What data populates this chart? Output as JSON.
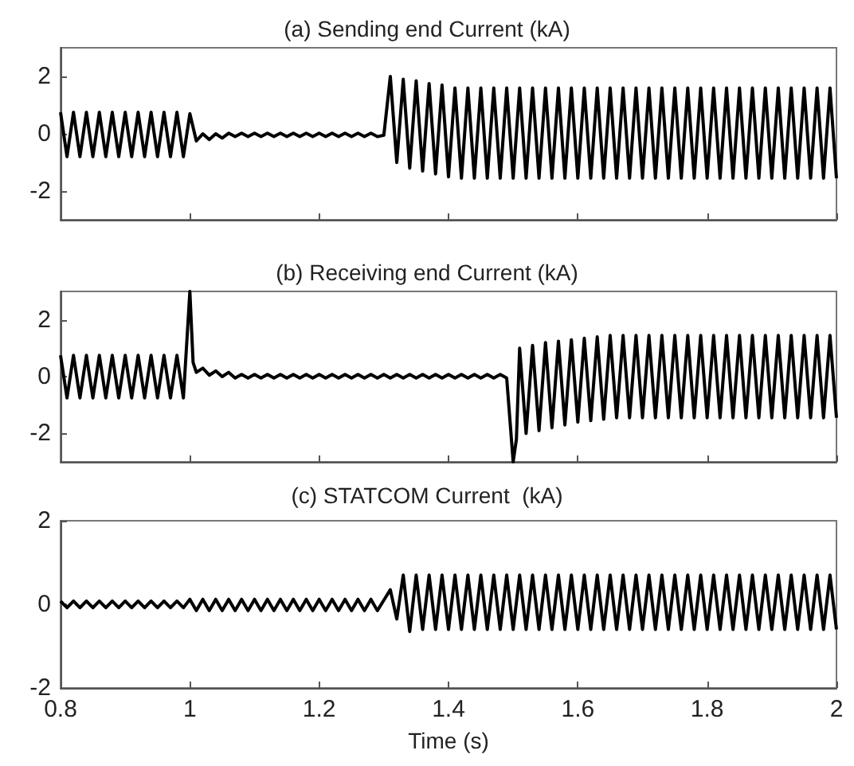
{
  "chart_data": [
    {
      "type": "line",
      "title": "(a) Sending end Current (kA)",
      "color": "#000000",
      "xlim": [
        0.8,
        2
      ],
      "ylim": [
        -3,
        3
      ],
      "xticks": [
        0.8,
        1,
        1.2,
        1.4,
        1.6,
        1.8,
        2
      ],
      "yticks": [
        -2,
        0,
        2
      ],
      "tick_labels": "y",
      "x": [
        0.8,
        0.81,
        0.82,
        0.83,
        0.84,
        0.85,
        0.86,
        0.87,
        0.88,
        0.89,
        0.9,
        0.91,
        0.92,
        0.93,
        0.94,
        0.95,
        0.96,
        0.97,
        0.98,
        0.99,
        1,
        1.01,
        1.02,
        1.03,
        1.04,
        1.05,
        1.06,
        1.07,
        1.08,
        1.09,
        1.1,
        1.11,
        1.12,
        1.13,
        1.14,
        1.15,
        1.16,
        1.17,
        1.18,
        1.19,
        1.2,
        1.21,
        1.22,
        1.23,
        1.24,
        1.25,
        1.26,
        1.27,
        1.28,
        1.29,
        1.3,
        1.31,
        1.32,
        1.33,
        1.34,
        1.35,
        1.36,
        1.37,
        1.38,
        1.39,
        1.4,
        1.41,
        1.42,
        1.43,
        1.44,
        1.45,
        1.46,
        1.47,
        1.48,
        1.49,
        1.5,
        1.51,
        1.52,
        1.53,
        1.54,
        1.55,
        1.56,
        1.57,
        1.58,
        1.59,
        1.6,
        1.61,
        1.62,
        1.63,
        1.64,
        1.65,
        1.66,
        1.67,
        1.68,
        1.69,
        1.7,
        1.71,
        1.72,
        1.73,
        1.74,
        1.75,
        1.76,
        1.77,
        1.78,
        1.79,
        1.8,
        1.81,
        1.82,
        1.83,
        1.84,
        1.85,
        1.86,
        1.87,
        1.88,
        1.89,
        1.9,
        1.91,
        1.92,
        1.93,
        1.94,
        1.95,
        1.96,
        1.97,
        1.98,
        1.99,
        2
      ],
      "values": [
        0.75,
        -0.8,
        0.75,
        -0.8,
        0.75,
        -0.8,
        0.75,
        -0.8,
        0.75,
        -0.8,
        0.75,
        -0.8,
        0.75,
        -0.8,
        0.75,
        -0.8,
        0.75,
        -0.8,
        0.75,
        -0.8,
        0.7,
        -0.25,
        0,
        -0.2,
        0,
        -0.15,
        0.02,
        -0.1,
        0.02,
        -0.1,
        0.02,
        -0.1,
        0.02,
        -0.1,
        0.02,
        -0.1,
        0.02,
        -0.1,
        0.02,
        -0.1,
        0.02,
        -0.1,
        0.02,
        -0.1,
        0.02,
        -0.1,
        0.02,
        -0.1,
        0.02,
        -0.1,
        -0.05,
        2,
        -1,
        1.9,
        -1.2,
        1.85,
        -1.3,
        1.75,
        -1.4,
        1.7,
        -1.5,
        1.6,
        -1.55,
        1.6,
        -1.55,
        1.6,
        -1.55,
        1.6,
        -1.55,
        1.6,
        -1.55,
        1.6,
        -1.55,
        1.6,
        -1.55,
        1.6,
        -1.55,
        1.6,
        -1.55,
        1.6,
        -1.55,
        1.6,
        -1.55,
        1.6,
        -1.55,
        1.6,
        -1.55,
        1.6,
        -1.55,
        1.6,
        -1.55,
        1.6,
        -1.55,
        1.6,
        -1.55,
        1.6,
        -1.55,
        1.6,
        -1.55,
        1.6,
        -1.55,
        1.6,
        -1.55,
        1.6,
        -1.55,
        1.6,
        -1.55,
        1.6,
        -1.55,
        1.6,
        -1.55,
        1.6,
        -1.55,
        1.6,
        -1.55,
        1.6,
        -1.55,
        1.6,
        -1.55,
        1.6,
        -1.55
      ]
    },
    {
      "type": "line",
      "title": "(b) Receiving end Current (kA)",
      "color": "#000000",
      "xlim": [
        0.8,
        2
      ],
      "ylim": [
        -3,
        3
      ],
      "xticks": [
        0.8,
        1,
        1.2,
        1.4,
        1.6,
        1.8,
        2
      ],
      "yticks": [
        -2,
        0,
        2
      ],
      "tick_labels": "y",
      "x": [
        0.8,
        0.81,
        0.82,
        0.83,
        0.84,
        0.85,
        0.86,
        0.87,
        0.88,
        0.89,
        0.9,
        0.91,
        0.92,
        0.93,
        0.94,
        0.95,
        0.96,
        0.97,
        0.98,
        0.99,
        1,
        1.005,
        1.01,
        1.02,
        1.03,
        1.04,
        1.05,
        1.06,
        1.07,
        1.08,
        1.09,
        1.1,
        1.11,
        1.12,
        1.13,
        1.14,
        1.15,
        1.16,
        1.17,
        1.18,
        1.19,
        1.2,
        1.21,
        1.22,
        1.23,
        1.24,
        1.25,
        1.26,
        1.27,
        1.28,
        1.29,
        1.3,
        1.31,
        1.32,
        1.33,
        1.34,
        1.35,
        1.36,
        1.37,
        1.38,
        1.39,
        1.4,
        1.41,
        1.42,
        1.43,
        1.44,
        1.45,
        1.46,
        1.47,
        1.48,
        1.49,
        1.5,
        1.505,
        1.51,
        1.52,
        1.53,
        1.54,
        1.55,
        1.56,
        1.57,
        1.58,
        1.59,
        1.6,
        1.61,
        1.62,
        1.63,
        1.64,
        1.65,
        1.66,
        1.67,
        1.68,
        1.69,
        1.7,
        1.71,
        1.72,
        1.73,
        1.74,
        1.75,
        1.76,
        1.77,
        1.78,
        1.79,
        1.8,
        1.81,
        1.82,
        1.83,
        1.84,
        1.85,
        1.86,
        1.87,
        1.88,
        1.89,
        1.9,
        1.91,
        1.92,
        1.93,
        1.94,
        1.95,
        1.96,
        1.97,
        1.98,
        1.99,
        2
      ],
      "values": [
        0.75,
        -0.75,
        0.75,
        -0.75,
        0.75,
        -0.75,
        0.75,
        -0.75,
        0.75,
        -0.75,
        0.75,
        -0.75,
        0.75,
        -0.75,
        0.75,
        -0.75,
        0.75,
        -0.75,
        0.75,
        -0.75,
        3,
        0.5,
        0.15,
        0.3,
        0.05,
        0.2,
        0,
        0.15,
        -0.05,
        0.08,
        -0.05,
        0.08,
        -0.05,
        0.08,
        -0.05,
        0.08,
        -0.05,
        0.08,
        -0.05,
        0.08,
        -0.05,
        0.08,
        -0.05,
        0.08,
        -0.05,
        0.08,
        -0.05,
        0.08,
        -0.05,
        0.08,
        -0.05,
        0.08,
        -0.05,
        0.08,
        -0.05,
        0.08,
        -0.05,
        0.08,
        -0.05,
        0.08,
        -0.05,
        0.08,
        -0.05,
        0.08,
        -0.05,
        0.08,
        -0.05,
        0.08,
        -0.05,
        0.08,
        -0.05,
        -3,
        -2.2,
        1,
        -2,
        1.1,
        -1.9,
        1.2,
        -1.8,
        1.25,
        -1.7,
        1.3,
        -1.6,
        1.35,
        -1.55,
        1.4,
        -1.5,
        1.45,
        -1.45,
        1.45,
        -1.45,
        1.45,
        -1.45,
        1.45,
        -1.45,
        1.45,
        -1.45,
        1.45,
        -1.45,
        1.45,
        -1.45,
        1.45,
        -1.45,
        1.45,
        -1.45,
        1.45,
        -1.45,
        1.45,
        -1.45,
        1.45,
        -1.45,
        1.45,
        -1.45,
        1.45,
        -1.45,
        1.45,
        -1.45,
        1.45,
        -1.45,
        1.45,
        -1.45,
        1.45,
        -1.45
      ]
    },
    {
      "type": "line",
      "title": "(c) STATCOM Current  (kA)",
      "xlabel": "Time (s)",
      "color": "#000000",
      "xlim": [
        0.8,
        2
      ],
      "ylim": [
        -2,
        2
      ],
      "xticks": [
        0.8,
        1,
        1.2,
        1.4,
        1.6,
        1.8,
        2
      ],
      "yticks": [
        -2,
        0,
        2
      ],
      "x": [
        0.8,
        0.81,
        0.82,
        0.83,
        0.84,
        0.85,
        0.86,
        0.87,
        0.88,
        0.89,
        0.9,
        0.91,
        0.92,
        0.93,
        0.94,
        0.95,
        0.96,
        0.97,
        0.98,
        0.99,
        1,
        1.01,
        1.02,
        1.03,
        1.04,
        1.05,
        1.06,
        1.07,
        1.08,
        1.09,
        1.1,
        1.11,
        1.12,
        1.13,
        1.14,
        1.15,
        1.16,
        1.17,
        1.18,
        1.19,
        1.2,
        1.21,
        1.22,
        1.23,
        1.24,
        1.25,
        1.26,
        1.27,
        1.28,
        1.29,
        1.3,
        1.31,
        1.32,
        1.33,
        1.34,
        1.35,
        1.36,
        1.37,
        1.38,
        1.39,
        1.4,
        1.41,
        1.42,
        1.43,
        1.44,
        1.45,
        1.46,
        1.47,
        1.48,
        1.49,
        1.5,
        1.51,
        1.52,
        1.53,
        1.54,
        1.55,
        1.56,
        1.57,
        1.58,
        1.59,
        1.6,
        1.61,
        1.62,
        1.63,
        1.64,
        1.65,
        1.66,
        1.67,
        1.68,
        1.69,
        1.7,
        1.71,
        1.72,
        1.73,
        1.74,
        1.75,
        1.76,
        1.77,
        1.78,
        1.79,
        1.8,
        1.81,
        1.82,
        1.83,
        1.84,
        1.85,
        1.86,
        1.87,
        1.88,
        1.89,
        1.9,
        1.91,
        1.92,
        1.93,
        1.94,
        1.95,
        1.96,
        1.97,
        1.98,
        1.99,
        2
      ],
      "values": [
        0.08,
        -0.08,
        0.08,
        -0.08,
        0.08,
        -0.08,
        0.08,
        -0.08,
        0.08,
        -0.08,
        0.08,
        -0.08,
        0.08,
        -0.08,
        0.08,
        -0.08,
        0.08,
        -0.08,
        0.08,
        -0.08,
        0.12,
        -0.15,
        0.12,
        -0.15,
        0.12,
        -0.15,
        0.12,
        -0.15,
        0.12,
        -0.15,
        0.12,
        -0.15,
        0.12,
        -0.15,
        0.12,
        -0.15,
        0.12,
        -0.15,
        0.12,
        -0.15,
        0.12,
        -0.15,
        0.12,
        -0.15,
        0.12,
        -0.15,
        0.12,
        -0.15,
        0.12,
        -0.15,
        0.1,
        0.35,
        -0.35,
        0.7,
        -0.65,
        0.7,
        -0.6,
        0.7,
        -0.6,
        0.7,
        -0.6,
        0.7,
        -0.6,
        0.7,
        -0.6,
        0.7,
        -0.6,
        0.7,
        -0.6,
        0.7,
        -0.6,
        0.7,
        -0.6,
        0.7,
        -0.6,
        0.7,
        -0.6,
        0.7,
        -0.6,
        0.7,
        -0.6,
        0.7,
        -0.6,
        0.7,
        -0.6,
        0.7,
        -0.6,
        0.7,
        -0.6,
        0.7,
        -0.6,
        0.7,
        -0.6,
        0.7,
        -0.6,
        0.7,
        -0.6,
        0.7,
        -0.6,
        0.7,
        -0.6,
        0.7,
        -0.6,
        0.7,
        -0.6,
        0.7,
        -0.6,
        0.7,
        -0.6,
        0.7,
        -0.6,
        0.7,
        -0.6,
        0.7,
        -0.6,
        0.7,
        -0.6,
        0.7,
        -0.6,
        0.7,
        -0.6
      ]
    }
  ]
}
